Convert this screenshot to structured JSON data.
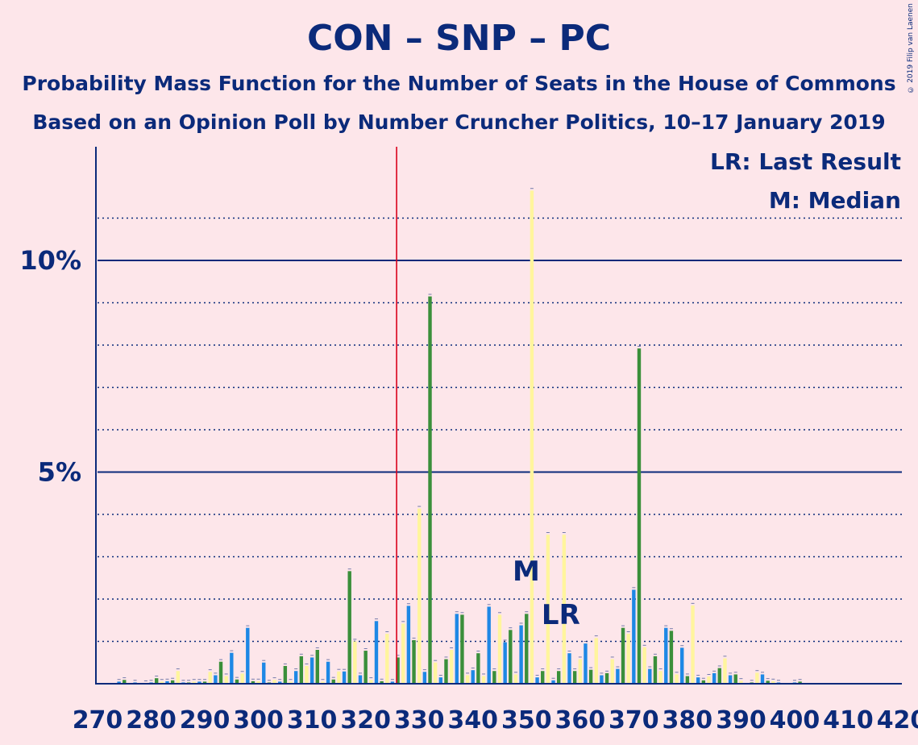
{
  "chart_data": {
    "type": "bar",
    "title": "CON – SNP – PC",
    "subtitle": "Probability Mass Function for the Number of Seats in the House of Commons",
    "subtitle2": "Based on an Opinion Poll by Number Cruncher Politics, 10–17 January 2019",
    "copyright": "© 2019 Filip van Laenen",
    "legend": [
      "LR: Last Result",
      "M: Median"
    ],
    "median_label": "M",
    "last_result_label": "LR",
    "median_seat": 351,
    "last_result_seat": 357,
    "majority_seat": 326,
    "xlim": [
      270,
      420
    ],
    "ylim": [
      0,
      12.5
    ],
    "x_ticks": [
      270,
      280,
      290,
      300,
      310,
      320,
      330,
      340,
      350,
      360,
      370,
      380,
      390,
      400,
      410,
      420
    ],
    "y_ticks_major": [
      {
        "value": 5,
        "label": "5%"
      },
      {
        "value": 10,
        "label": "10%"
      }
    ],
    "y_ticks_minor": [
      1,
      2,
      3,
      4,
      6,
      7,
      8,
      9,
      11
    ],
    "colors": {
      "background": "#fde6ea",
      "axis": "#0b2a7a",
      "majority_line": "#d9001b",
      "bar_cycle": [
        "#fff59d",
        "#1e88e5",
        "#3a8f3a"
      ]
    },
    "x": [
      274,
      275,
      277,
      279,
      280,
      281,
      282,
      283,
      284,
      285,
      286,
      287,
      288,
      289,
      290,
      291,
      292,
      293,
      294,
      295,
      296,
      297,
      298,
      299,
      300,
      301,
      302,
      303,
      304,
      305,
      306,
      307,
      308,
      309,
      310,
      311,
      312,
      313,
      314,
      315,
      316,
      317,
      318,
      319,
      320,
      321,
      322,
      323,
      324,
      325,
      326,
      327,
      328,
      329,
      330,
      331,
      332,
      333,
      334,
      335,
      336,
      337,
      338,
      339,
      340,
      341,
      342,
      343,
      344,
      345,
      346,
      347,
      348,
      349,
      350,
      351,
      352,
      353,
      354,
      355,
      356,
      357,
      358,
      359,
      360,
      361,
      362,
      363,
      364,
      365,
      366,
      367,
      368,
      369,
      370,
      371,
      372,
      373,
      374,
      375,
      376,
      377,
      378,
      379,
      380,
      381,
      382,
      383,
      384,
      385,
      386,
      387,
      388,
      389,
      390,
      392,
      393,
      394,
      395,
      396,
      397,
      400,
      401
    ],
    "values": [
      0.05,
      0.09,
      0.03,
      0.02,
      0.03,
      0.13,
      0.05,
      0.06,
      0.08,
      0.3,
      0.03,
      0.03,
      0.05,
      0.05,
      0.05,
      0.28,
      0.2,
      0.52,
      0.18,
      0.73,
      0.1,
      0.24,
      1.32,
      0.06,
      0.06,
      0.5,
      0.03,
      0.09,
      0.05,
      0.42,
      0.05,
      0.3,
      0.65,
      0.42,
      0.62,
      0.8,
      0.05,
      0.52,
      0.1,
      0.29,
      0.29,
      2.66,
      1.0,
      0.2,
      0.78,
      0.09,
      1.48,
      0.06,
      1.18,
      0.05,
      0.62,
      1.42,
      1.84,
      1.03,
      4.14,
      0.28,
      9.15,
      0.5,
      0.15,
      0.58,
      0.8,
      1.65,
      1.63,
      0.2,
      0.32,
      0.72,
      0.18,
      1.82,
      0.3,
      1.63,
      0.98,
      1.27,
      0.22,
      1.38,
      1.65,
      11.65,
      0.15,
      0.3,
      3.52,
      0.08,
      0.3,
      3.52,
      0.72,
      0.3,
      0.58,
      0.95,
      0.33,
      1.08,
      0.2,
      0.25,
      0.58,
      0.35,
      1.32,
      1.18,
      2.22,
      7.92,
      0.86,
      0.35,
      0.65,
      0.3,
      1.32,
      1.25,
      0.22,
      0.85,
      0.18,
      1.85,
      0.15,
      0.08,
      0.17,
      0.25,
      0.37,
      0.6,
      0.2,
      0.22,
      0.07,
      0.03,
      0.26,
      0.22,
      0.07,
      0.06,
      0.03,
      0.03,
      0.05
    ]
  }
}
